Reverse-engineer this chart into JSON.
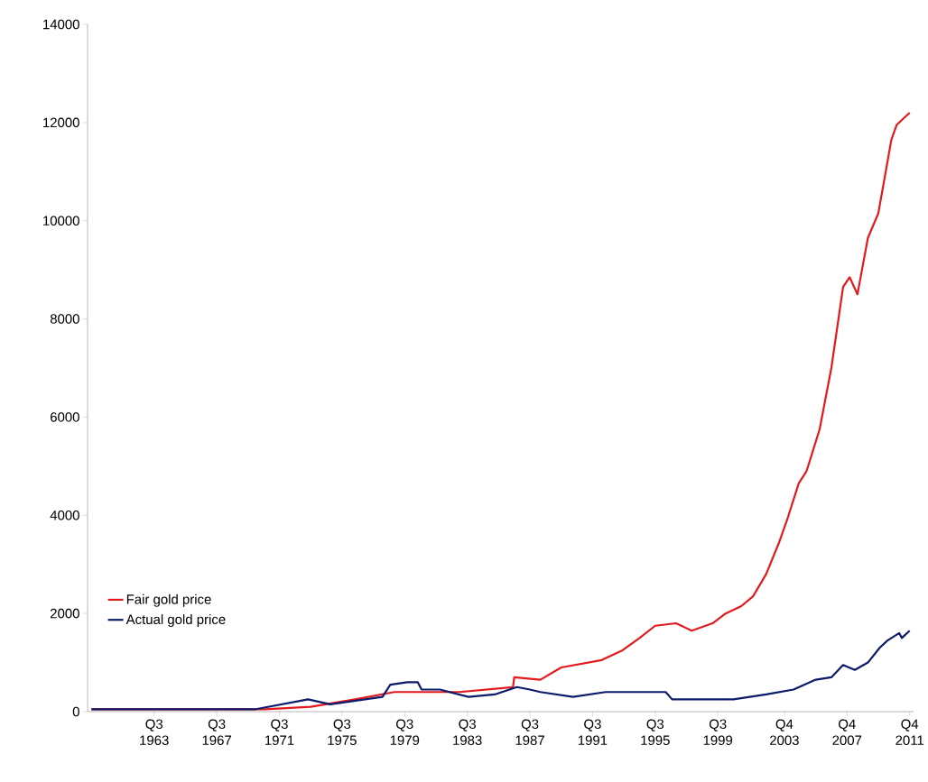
{
  "chart_data": {
    "type": "line",
    "xlim": [
      "1959-04",
      "2012-01"
    ],
    "ylim": [
      0,
      14000
    ],
    "xticks": [
      {
        "value": "1963-07",
        "label": "Q3 1963"
      },
      {
        "value": "1967-07",
        "label": "Q3 1967"
      },
      {
        "value": "1971-07",
        "label": "Q3 1971"
      },
      {
        "value": "1975-07",
        "label": "Q3 1975"
      },
      {
        "value": "1979-07",
        "label": "Q3 1979"
      },
      {
        "value": "1983-07",
        "label": "Q3 1983"
      },
      {
        "value": "1987-07",
        "label": "Q3 1987"
      },
      {
        "value": "1991-07",
        "label": "Q3 1991"
      },
      {
        "value": "1995-07",
        "label": "Q3 1995"
      },
      {
        "value": "1999-07",
        "label": "Q3 1999"
      },
      {
        "value": "2003-10",
        "label": "Q4 2003"
      },
      {
        "value": "2007-10",
        "label": "Q4 2007"
      },
      {
        "value": "2011-10",
        "label": "Q4 2011"
      }
    ],
    "yticks": [
      0,
      2000,
      4000,
      6000,
      8000,
      10000,
      12000,
      14000
    ],
    "legend": "bottom left",
    "grid": false,
    "marker": "none",
    "line_style": "solid",
    "series": [
      {
        "name": "Fair gold price",
        "color": "#e3191c",
        "x": [
          "1959-07",
          "1968-01",
          "1970-08",
          "1973-07",
          "1976-05",
          "1978-11",
          "1983-01",
          "1986-06",
          "1986-07",
          "1988-03",
          "1989-07",
          "1992-02",
          "1993-06",
          "1994-07",
          "1995-07",
          "1996-11",
          "1997-11",
          "1999-03",
          "2000-01",
          "2001-01",
          "2001-10",
          "2002-08",
          "2003-06",
          "2003-12",
          "2004-09",
          "2005-03",
          "2006-01",
          "2006-10",
          "2007-07",
          "2007-12",
          "2008-06",
          "2009-02",
          "2009-10",
          "2010-08",
          "2010-12",
          "2011-10"
        ],
        "values": [
          50,
          50,
          50,
          100,
          250,
          400,
          400,
          500,
          700,
          650,
          900,
          1050,
          1250,
          1500,
          1750,
          1800,
          1650,
          1800,
          2000,
          2150,
          2350,
          2800,
          3450,
          3900,
          4650,
          4900,
          5750,
          7000,
          8650,
          8850,
          8500,
          9650,
          10150,
          11650,
          11950,
          12200
        ]
      },
      {
        "name": "Actual gold price",
        "color": "#0b1a6b",
        "x": [
          "1959-07",
          "1968-01",
          "1970-01",
          "1973-05",
          "1974-10",
          "1978-02",
          "1978-08",
          "1979-09",
          "1980-05",
          "1980-08",
          "1981-10",
          "1983-08",
          "1985-04",
          "1986-09",
          "1987-07",
          "1988-03",
          "1990-04",
          "1992-05",
          "1996-03",
          "1996-08",
          "2000-07",
          "2002-08",
          "2004-05",
          "2005-10",
          "2006-10",
          "2007-07",
          "2008-04",
          "2009-02",
          "2009-11",
          "2010-05",
          "2011-02",
          "2011-04",
          "2011-10"
        ],
        "values": [
          50,
          50,
          50,
          250,
          150,
          300,
          550,
          600,
          600,
          450,
          450,
          300,
          350,
          500,
          450,
          400,
          300,
          400,
          400,
          250,
          250,
          350,
          450,
          650,
          700,
          950,
          850,
          1000,
          1300,
          1450,
          1600,
          1500,
          1650
        ]
      }
    ]
  }
}
